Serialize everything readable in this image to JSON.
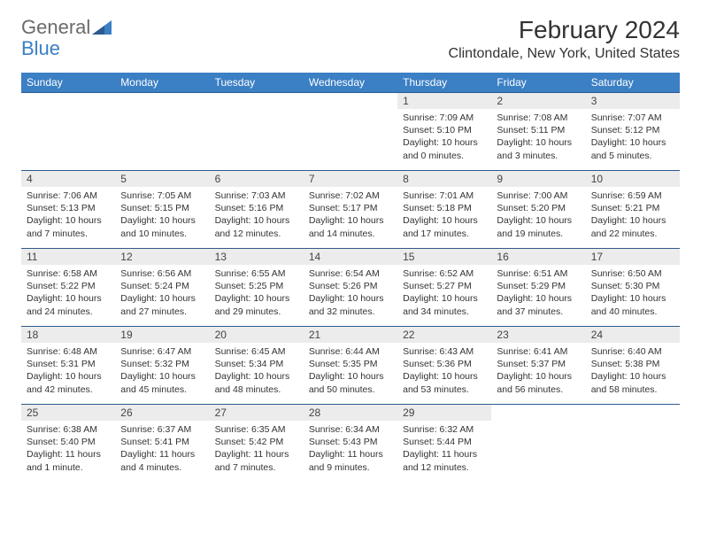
{
  "logo": {
    "text_gray": "General",
    "text_blue": "Blue"
  },
  "title": "February 2024",
  "location": "Clintondale, New York, United States",
  "colors": {
    "header_bg": "#3b7fc4",
    "header_text": "#ffffff",
    "daynum_bg": "#ececec",
    "daynum_text": "#444444",
    "cell_text": "#333333",
    "rule": "#2d5a8e",
    "logo_gray": "#6b6b6b",
    "logo_blue": "#3b7fc4",
    "page_bg": "#ffffff"
  },
  "fonts": {
    "month_title_size": 28,
    "location_size": 16,
    "weekday_size": 12,
    "daynum_size": 12,
    "body_size": 10.5,
    "logo_size": 22
  },
  "weekdays": [
    "Sunday",
    "Monday",
    "Tuesday",
    "Wednesday",
    "Thursday",
    "Friday",
    "Saturday"
  ],
  "grid": {
    "rows": 5,
    "cols": 7,
    "first_weekday_index": 4,
    "days": [
      {
        "n": 1,
        "sunrise": "7:09 AM",
        "sunset": "5:10 PM",
        "daylight": "10 hours and 0 minutes."
      },
      {
        "n": 2,
        "sunrise": "7:08 AM",
        "sunset": "5:11 PM",
        "daylight": "10 hours and 3 minutes."
      },
      {
        "n": 3,
        "sunrise": "7:07 AM",
        "sunset": "5:12 PM",
        "daylight": "10 hours and 5 minutes."
      },
      {
        "n": 4,
        "sunrise": "7:06 AM",
        "sunset": "5:13 PM",
        "daylight": "10 hours and 7 minutes."
      },
      {
        "n": 5,
        "sunrise": "7:05 AM",
        "sunset": "5:15 PM",
        "daylight": "10 hours and 10 minutes."
      },
      {
        "n": 6,
        "sunrise": "7:03 AM",
        "sunset": "5:16 PM",
        "daylight": "10 hours and 12 minutes."
      },
      {
        "n": 7,
        "sunrise": "7:02 AM",
        "sunset": "5:17 PM",
        "daylight": "10 hours and 14 minutes."
      },
      {
        "n": 8,
        "sunrise": "7:01 AM",
        "sunset": "5:18 PM",
        "daylight": "10 hours and 17 minutes."
      },
      {
        "n": 9,
        "sunrise": "7:00 AM",
        "sunset": "5:20 PM",
        "daylight": "10 hours and 19 minutes."
      },
      {
        "n": 10,
        "sunrise": "6:59 AM",
        "sunset": "5:21 PM",
        "daylight": "10 hours and 22 minutes."
      },
      {
        "n": 11,
        "sunrise": "6:58 AM",
        "sunset": "5:22 PM",
        "daylight": "10 hours and 24 minutes."
      },
      {
        "n": 12,
        "sunrise": "6:56 AM",
        "sunset": "5:24 PM",
        "daylight": "10 hours and 27 minutes."
      },
      {
        "n": 13,
        "sunrise": "6:55 AM",
        "sunset": "5:25 PM",
        "daylight": "10 hours and 29 minutes."
      },
      {
        "n": 14,
        "sunrise": "6:54 AM",
        "sunset": "5:26 PM",
        "daylight": "10 hours and 32 minutes."
      },
      {
        "n": 15,
        "sunrise": "6:52 AM",
        "sunset": "5:27 PM",
        "daylight": "10 hours and 34 minutes."
      },
      {
        "n": 16,
        "sunrise": "6:51 AM",
        "sunset": "5:29 PM",
        "daylight": "10 hours and 37 minutes."
      },
      {
        "n": 17,
        "sunrise": "6:50 AM",
        "sunset": "5:30 PM",
        "daylight": "10 hours and 40 minutes."
      },
      {
        "n": 18,
        "sunrise": "6:48 AM",
        "sunset": "5:31 PM",
        "daylight": "10 hours and 42 minutes."
      },
      {
        "n": 19,
        "sunrise": "6:47 AM",
        "sunset": "5:32 PM",
        "daylight": "10 hours and 45 minutes."
      },
      {
        "n": 20,
        "sunrise": "6:45 AM",
        "sunset": "5:34 PM",
        "daylight": "10 hours and 48 minutes."
      },
      {
        "n": 21,
        "sunrise": "6:44 AM",
        "sunset": "5:35 PM",
        "daylight": "10 hours and 50 minutes."
      },
      {
        "n": 22,
        "sunrise": "6:43 AM",
        "sunset": "5:36 PM",
        "daylight": "10 hours and 53 minutes."
      },
      {
        "n": 23,
        "sunrise": "6:41 AM",
        "sunset": "5:37 PM",
        "daylight": "10 hours and 56 minutes."
      },
      {
        "n": 24,
        "sunrise": "6:40 AM",
        "sunset": "5:38 PM",
        "daylight": "10 hours and 58 minutes."
      },
      {
        "n": 25,
        "sunrise": "6:38 AM",
        "sunset": "5:40 PM",
        "daylight": "11 hours and 1 minute."
      },
      {
        "n": 26,
        "sunrise": "6:37 AM",
        "sunset": "5:41 PM",
        "daylight": "11 hours and 4 minutes."
      },
      {
        "n": 27,
        "sunrise": "6:35 AM",
        "sunset": "5:42 PM",
        "daylight": "11 hours and 7 minutes."
      },
      {
        "n": 28,
        "sunrise": "6:34 AM",
        "sunset": "5:43 PM",
        "daylight": "11 hours and 9 minutes."
      },
      {
        "n": 29,
        "sunrise": "6:32 AM",
        "sunset": "5:44 PM",
        "daylight": "11 hours and 12 minutes."
      }
    ]
  },
  "labels": {
    "sunrise": "Sunrise:",
    "sunset": "Sunset:",
    "daylight": "Daylight:"
  }
}
